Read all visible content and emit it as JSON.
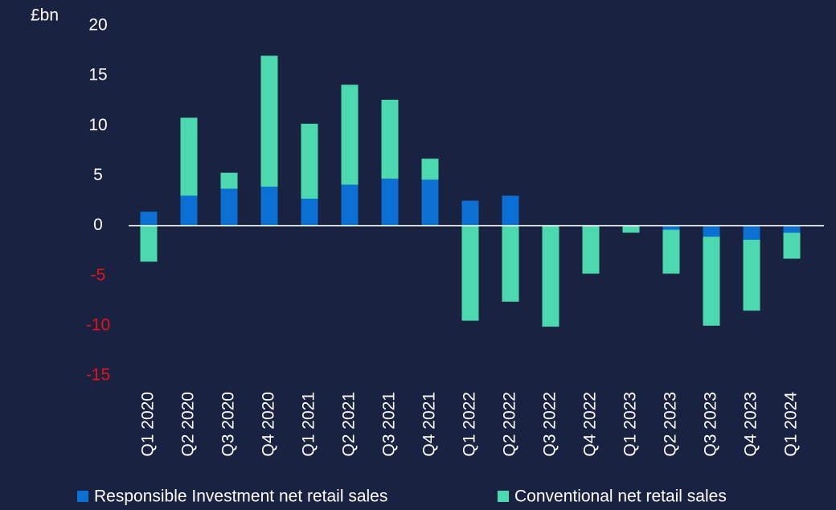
{
  "chart_data": {
    "type": "stacked_bar",
    "unit_label": "£bn",
    "categories": [
      "Q1 2020",
      "Q2 2020",
      "Q3 2020",
      "Q4 2020",
      "Q1 2021",
      "Q2 2021",
      "Q3 2021",
      "Q4 2021",
      "Q1 2022",
      "Q2 2022",
      "Q3 2022",
      "Q4 2022",
      "Q1 2023",
      "Q2 2023",
      "Q3 2023",
      "Q4 2023",
      "Q1 2024"
    ],
    "series": [
      {
        "name": "Responsible Investment net retail sales",
        "color": "#0b6fd4",
        "values": [
          1.4,
          3.0,
          3.7,
          3.9,
          2.7,
          4.1,
          4.7,
          4.6,
          2.5,
          3.0,
          0,
          0,
          0,
          -0.4,
          -1.1,
          -1.4,
          -0.7
        ]
      },
      {
        "name": "Conventional net retail sales",
        "color": "#4dd9b0",
        "values": [
          -3.6,
          7.8,
          1.6,
          13.1,
          7.5,
          10.0,
          7.9,
          2.1,
          -9.5,
          -7.6,
          -10.1,
          -4.8,
          -0.7,
          -4.4,
          -8.9,
          -7.1,
          -2.6
        ]
      }
    ],
    "ylim": [
      -15,
      20
    ],
    "yticks": [
      -15,
      -10,
      -5,
      0,
      5,
      10,
      15,
      20
    ],
    "negative_tick_color": "#e8121a",
    "grid": false,
    "legend": "bottom"
  }
}
